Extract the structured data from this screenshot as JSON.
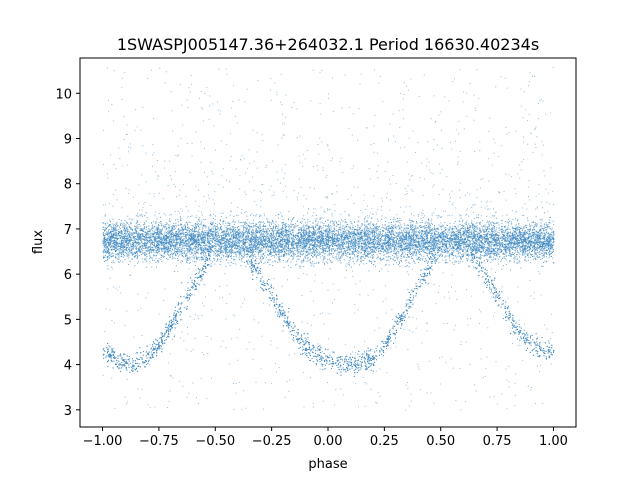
{
  "chart_data": {
    "type": "scatter",
    "title": "1SWASPJ005147.36+264032.1 Period 16630.40234s",
    "xlabel": "phase",
    "ylabel": "flux",
    "xlim": [
      -1.1,
      1.1
    ],
    "ylim": [
      2.62,
      10.78
    ],
    "x_ticks": [
      -1.0,
      -0.75,
      -0.5,
      -0.25,
      0.0,
      0.25,
      0.5,
      0.75,
      1.0
    ],
    "x_tick_labels": [
      "−1.00",
      "−0.75",
      "−0.50",
      "−0.25",
      "0.00",
      "0.25",
      "0.50",
      "0.75",
      "1.00"
    ],
    "y_ticks": [
      3,
      4,
      5,
      6,
      7,
      8,
      9,
      10
    ],
    "y_tick_labels": [
      "3",
      "4",
      "5",
      "6",
      "7",
      "8",
      "9",
      "10"
    ],
    "grid": false,
    "legend": "none",
    "marker_color": "#3a86c0",
    "series": [
      {
        "values_description": "eclipse branch (lower envelope of phase-folded light curve)",
        "x": [
          -1.0,
          -0.95,
          -0.9,
          -0.87,
          -0.8,
          -0.75,
          -0.7,
          -0.65,
          -0.6,
          -0.55,
          -0.5,
          -0.45,
          -0.4,
          -0.35,
          -0.3,
          -0.25,
          -0.2,
          -0.15,
          -0.1,
          -0.05,
          0.0,
          0.05,
          0.1,
          0.13,
          0.2,
          0.25,
          0.3,
          0.35,
          0.4,
          0.45,
          0.5,
          0.55,
          0.6,
          0.65,
          0.7,
          0.75,
          0.8,
          0.85,
          0.9,
          0.95,
          1.0
        ],
        "y": [
          4.35,
          4.15,
          4.05,
          4.02,
          4.15,
          4.45,
          4.85,
          5.3,
          5.75,
          6.2,
          6.6,
          6.75,
          6.6,
          6.3,
          5.95,
          5.55,
          5.1,
          4.7,
          4.4,
          4.2,
          4.1,
          4.03,
          4.02,
          4.02,
          4.15,
          4.45,
          4.85,
          5.3,
          5.75,
          6.2,
          6.6,
          6.75,
          6.6,
          6.3,
          5.95,
          5.55,
          5.1,
          4.7,
          4.45,
          4.35,
          4.3
        ]
      },
      {
        "values_description": "out-of-eclipse plateau band",
        "x": [
          -1.0,
          -0.5,
          0.0,
          0.5,
          1.0
        ],
        "y": [
          6.75,
          6.75,
          6.75,
          6.75,
          6.75
        ],
        "spread": [
          6.2,
          7.3
        ]
      }
    ]
  }
}
